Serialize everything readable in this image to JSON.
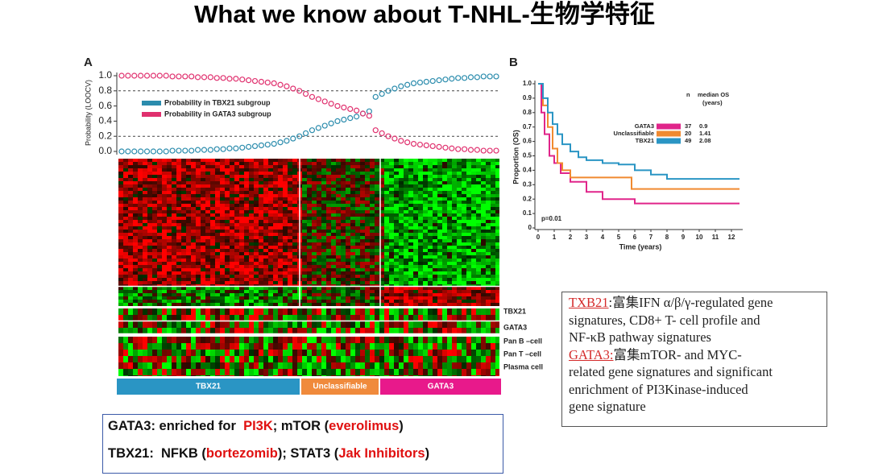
{
  "title": "What we know about T-NHL-生物学特征",
  "panel_a": {
    "label": "A",
    "probability_chart": {
      "type": "scatter",
      "y_label": "Probability (LOOCV)",
      "ylim": [
        0,
        1
      ],
      "yticks": [
        {
          "value": 0,
          "label": "0.0"
        },
        0.2,
        0.4,
        0.6,
        0.8,
        {
          "value": 1,
          "label": "1.0"
        }
      ],
      "reference_lines": [
        0.8,
        0.2
      ],
      "series": [
        {
          "name": "Probability in TBX21 subgroup",
          "color": "#2b8cad",
          "values": [
            0,
            0,
            0,
            0,
            0,
            0,
            0,
            0,
            0.01,
            0.01,
            0.01,
            0.01,
            0.02,
            0.02,
            0.02,
            0.03,
            0.03,
            0.04,
            0.04,
            0.05,
            0.06,
            0.07,
            0.08,
            0.09,
            0.1,
            0.12,
            0.14,
            0.17,
            0.2,
            0.24,
            0.28,
            0.31,
            0.34,
            0.37,
            0.4,
            0.42,
            0.44,
            0.46,
            0.5,
            0.53,
            0.72,
            0.76,
            0.8,
            0.83,
            0.86,
            0.88,
            0.9,
            0.91,
            0.92,
            0.93,
            0.94,
            0.95,
            0.96,
            0.97,
            0.97,
            0.98,
            0.98,
            0.99,
            0.99,
            0.99
          ]
        },
        {
          "name": "Probability in GATA3 subgroup",
          "color": "#e0306e",
          "values": [
            1,
            1,
            1,
            1,
            1,
            1,
            1,
            1,
            0.99,
            0.99,
            0.99,
            0.99,
            0.98,
            0.98,
            0.98,
            0.97,
            0.97,
            0.96,
            0.96,
            0.95,
            0.94,
            0.93,
            0.92,
            0.91,
            0.9,
            0.88,
            0.86,
            0.83,
            0.8,
            0.76,
            0.72,
            0.69,
            0.66,
            0.63,
            0.6,
            0.58,
            0.56,
            0.54,
            0.5,
            0.47,
            0.28,
            0.24,
            0.2,
            0.17,
            0.14,
            0.12,
            0.1,
            0.09,
            0.08,
            0.07,
            0.06,
            0.05,
            0.04,
            0.03,
            0.03,
            0.02,
            0.02,
            0.01,
            0.01,
            0.01
          ]
        }
      ]
    },
    "heatmap_rows": [
      "TBX21",
      "GATA3",
      "Pan B –cell",
      "Pan T –cell",
      "Plasma cell"
    ],
    "groups": [
      {
        "name": "TBX21",
        "color": "#2a95c4"
      },
      {
        "name": "Unclassifiable",
        "color": "#f08a3c"
      },
      {
        "name": "GATA3",
        "color": "#e8198b"
      }
    ]
  },
  "panel_b": {
    "label": "B",
    "type": "line",
    "y_label": "Proportion (OS)",
    "x_label": "Time (years)",
    "annotation": "p=0.01",
    "xlim": [
      0,
      12.5
    ],
    "ylim": [
      0,
      1
    ],
    "xticks": [
      0,
      1,
      2,
      3,
      4,
      5,
      6,
      7,
      8,
      9,
      10,
      11,
      12
    ],
    "yticks": [
      0,
      0.1,
      0.2,
      0.3,
      0.4,
      0.5,
      0.6,
      0.7,
      0.8,
      0.9,
      {
        "value": 1,
        "label": "1.0"
      }
    ],
    "legend_headers": [
      "n",
      "median OS",
      "(years)"
    ],
    "series": [
      {
        "name": "GATA3",
        "color": "#e0258a",
        "n": 37,
        "median_os": 0.9,
        "x": [
          0,
          0.2,
          0.4,
          0.7,
          1,
          1.4,
          2,
          3,
          4,
          6,
          12.5
        ],
        "values": [
          1,
          0.8,
          0.65,
          0.5,
          0.45,
          0.38,
          0.32,
          0.25,
          0.2,
          0.17,
          0.17
        ]
      },
      {
        "name": "Unclassifiable",
        "color": "#f08a30",
        "n": 20,
        "median_os": 1.41,
        "x": [
          0,
          0.3,
          0.6,
          0.9,
          1.2,
          1.5,
          2,
          5.8,
          12.5
        ],
        "values": [
          1,
          0.85,
          0.7,
          0.55,
          0.45,
          0.4,
          0.35,
          0.27,
          0.27
        ]
      },
      {
        "name": "TBX21",
        "color": "#2a95c4",
        "n": 49,
        "median_os": 2.08,
        "x": [
          0,
          0.3,
          0.6,
          0.9,
          1.2,
          1.5,
          2,
          2.5,
          3,
          4,
          5,
          6,
          7,
          8,
          12.5
        ],
        "values": [
          1,
          0.9,
          0.8,
          0.72,
          0.65,
          0.58,
          0.53,
          0.49,
          0.47,
          0.45,
          0.44,
          0.4,
          0.37,
          0.34,
          0.34
        ]
      }
    ]
  },
  "notes": {
    "label_color": "#d42a2a",
    "sections": [
      {
        "label": "TXB21",
        "lines": [
          ":富集IFN α/β/γ-regulated gene",
          "signatures, CD8+ T- cell profile and",
          "NF-κB pathway signatures"
        ]
      },
      {
        "label": "GATA3:",
        "lines": [
          "富集mTOR- and MYC-",
          "related gene signatures and significant",
          "enrichment of PI3Kinase-induced",
          "gene signature"
        ]
      }
    ]
  },
  "summary": {
    "highlight_color": "#e01010",
    "lines": [
      [
        {
          "text": "GATA3: enriched for  "
        },
        {
          "text": "PI3K",
          "highlight": true
        },
        {
          "text": "; mTOR ("
        },
        {
          "text": "everolimus",
          "highlight": true
        },
        {
          "text": ")"
        }
      ],
      [
        {
          "text": "TBX21:  NFKB ("
        },
        {
          "text": "bortezomib",
          "highlight": true
        },
        {
          "text": "); STAT3 ("
        },
        {
          "text": "Jak Inhibitors",
          "highlight": true
        },
        {
          "text": ")"
        }
      ]
    ]
  }
}
